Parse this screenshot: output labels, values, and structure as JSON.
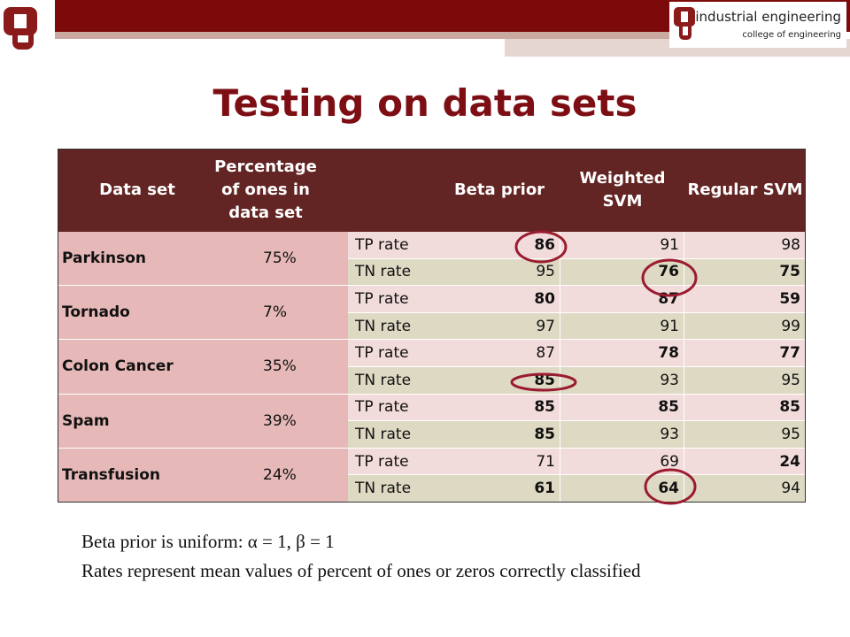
{
  "header": {
    "logo_title": "industrial engineering",
    "logo_subtitle": "college of engineering",
    "title": "Testing on data sets"
  },
  "table": {
    "columns": [
      "Data set",
      "Percentage of ones in data set",
      "Beta prior",
      "Weighted SVM",
      "Regular SVM"
    ],
    "groups": [
      {
        "name": "Parkinson",
        "percentage": "75%",
        "rows": [
          {
            "label": "TP rate",
            "values": [
              86,
              91,
              98
            ],
            "bold": [
              true,
              false,
              false
            ]
          },
          {
            "label": "TN rate",
            "values": [
              95,
              76,
              75
            ],
            "bold": [
              false,
              true,
              true
            ]
          }
        ]
      },
      {
        "name": "Tornado",
        "percentage": "7%",
        "rows": [
          {
            "label": "TP rate",
            "values": [
              80,
              87,
              59
            ],
            "bold": [
              true,
              true,
              true
            ]
          },
          {
            "label": "TN rate",
            "values": [
              97,
              91,
              99
            ],
            "bold": [
              false,
              false,
              false
            ]
          }
        ]
      },
      {
        "name": "Colon Cancer",
        "percentage": "35%",
        "rows": [
          {
            "label": "TP rate",
            "values": [
              87,
              78,
              77
            ],
            "bold": [
              false,
              true,
              true
            ]
          },
          {
            "label": "TN rate",
            "values": [
              85,
              93,
              95
            ],
            "bold": [
              true,
              false,
              false
            ]
          }
        ]
      },
      {
        "name": "Spam",
        "percentage": "39%",
        "rows": [
          {
            "label": "TP rate",
            "values": [
              85,
              85,
              85
            ],
            "bold": [
              true,
              true,
              true
            ]
          },
          {
            "label": "TN rate",
            "values": [
              85,
              93,
              95
            ],
            "bold": [
              true,
              false,
              false
            ]
          }
        ]
      },
      {
        "name": "Transfusion",
        "percentage": "24%",
        "rows": [
          {
            "label": "TP rate",
            "values": [
              71,
              69,
              24
            ],
            "bold": [
              false,
              false,
              true
            ]
          },
          {
            "label": "TN rate",
            "values": [
              61,
              64,
              94
            ],
            "bold": [
              true,
              true,
              false
            ]
          }
        ]
      }
    ]
  },
  "notes": [
    "Beta prior is uniform: α = 1, β = 1",
    "Rates represent mean values of percent of ones or zeros correctly classified"
  ]
}
